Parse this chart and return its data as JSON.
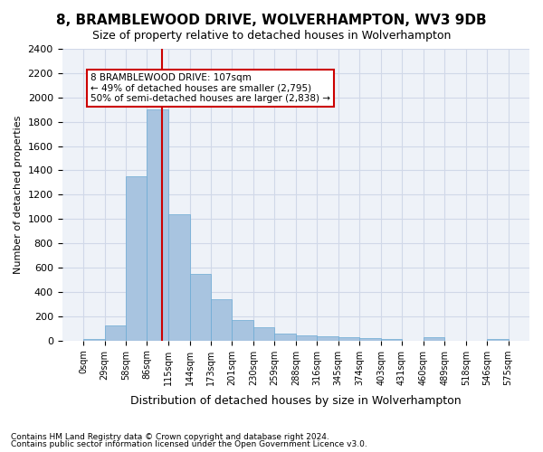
{
  "title": "8, BRAMBLEWOOD DRIVE, WOLVERHAMPTON, WV3 9DB",
  "subtitle": "Size of property relative to detached houses in Wolverhampton",
  "xlabel": "Distribution of detached houses by size in Wolverhampton",
  "ylabel": "Number of detached properties",
  "bar_color": "#a8c4e0",
  "bar_edge_color": "#6aaad4",
  "background_color": "#ffffff",
  "grid_color": "#d0d8e8",
  "bin_edges": [
    0,
    29,
    58,
    86,
    115,
    144,
    173,
    201,
    230,
    259,
    288,
    316,
    345,
    374,
    403,
    431,
    460,
    489,
    518,
    546,
    575
  ],
  "bar_heights": [
    10,
    125,
    1350,
    1900,
    1040,
    545,
    340,
    165,
    110,
    60,
    40,
    35,
    25,
    20,
    15,
    0,
    25,
    0,
    0,
    15
  ],
  "tick_labels": [
    "0sqm",
    "29sqm",
    "58sqm",
    "86sqm",
    "115sqm",
    "144sqm",
    "173sqm",
    "201sqm",
    "230sqm",
    "259sqm",
    "288sqm",
    "316sqm",
    "345sqm",
    "374sqm",
    "403sqm",
    "431sqm",
    "460sqm",
    "489sqm",
    "518sqm",
    "546sqm",
    "575sqm"
  ],
  "vline_x": 107,
  "vline_color": "#cc0000",
  "annotation_text": "8 BRAMBLEWOOD DRIVE: 107sqm\n← 49% of detached houses are smaller (2,795)\n50% of semi-detached houses are larger (2,838) →",
  "annotation_box_color": "#ffffff",
  "annotation_box_edge": "#cc0000",
  "ylim": [
    0,
    2400
  ],
  "yticks": [
    0,
    200,
    400,
    600,
    800,
    1000,
    1200,
    1400,
    1600,
    1800,
    2000,
    2200,
    2400
  ],
  "footer1": "Contains HM Land Registry data © Crown copyright and database right 2024.",
  "footer2": "Contains public sector information licensed under the Open Government Licence v3.0."
}
